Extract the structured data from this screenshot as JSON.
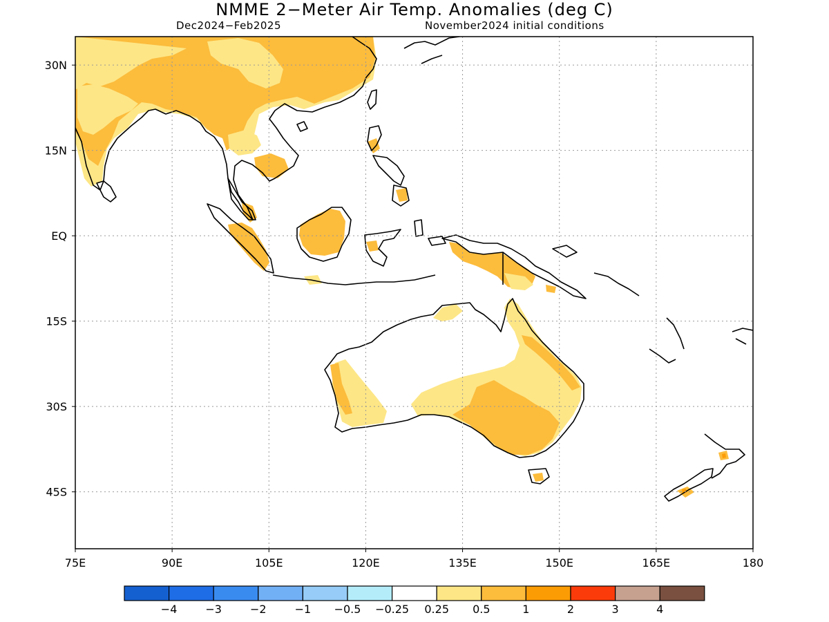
{
  "title": "NMME 2−Meter Air Temp. Anomalies (deg C)",
  "subtitle_left": "Dec2024−Feb2025",
  "subtitle_right": "November2024 initial conditions",
  "map": {
    "lon_range": [
      75,
      180
    ],
    "lat_range": [
      -55,
      35
    ],
    "lon_ticks": [
      {
        "value": 75,
        "label": "75E"
      },
      {
        "value": 90,
        "label": "90E"
      },
      {
        "value": 105,
        "label": "105E"
      },
      {
        "value": 120,
        "label": "120E"
      },
      {
        "value": 135,
        "label": "135E"
      },
      {
        "value": 150,
        "label": "150E"
      },
      {
        "value": 165,
        "label": "165E"
      },
      {
        "value": 180,
        "label": "180"
      }
    ],
    "lat_ticks": [
      {
        "value": 30,
        "label": "30N"
      },
      {
        "value": 15,
        "label": "15N"
      },
      {
        "value": 0,
        "label": "EQ"
      },
      {
        "value": -15,
        "label": "15S"
      },
      {
        "value": -30,
        "label": "30S"
      },
      {
        "value": -45,
        "label": "45S"
      }
    ],
    "grid": true
  },
  "colorbar": {
    "colors": [
      "#1560d0",
      "#1f6de6",
      "#3a8bf0",
      "#72b0f5",
      "#96ccf7",
      "#b4ecfa",
      "#ffffff",
      "#fde686",
      "#fcbc3c",
      "#fc9c05",
      "#fb3c0a",
      "#c6a190",
      "#7a5040"
    ],
    "labels": [
      "−4",
      "−3",
      "−2",
      "−1",
      "−0.5",
      "−0.25",
      "0.25",
      "0.5",
      "1",
      "2",
      "3",
      "4"
    ]
  },
  "palette": {
    "c025": "#fde686",
    "c05": "#fcbc3c",
    "c1": "#fc9c05",
    "c2": "#fb3c0a"
  }
}
